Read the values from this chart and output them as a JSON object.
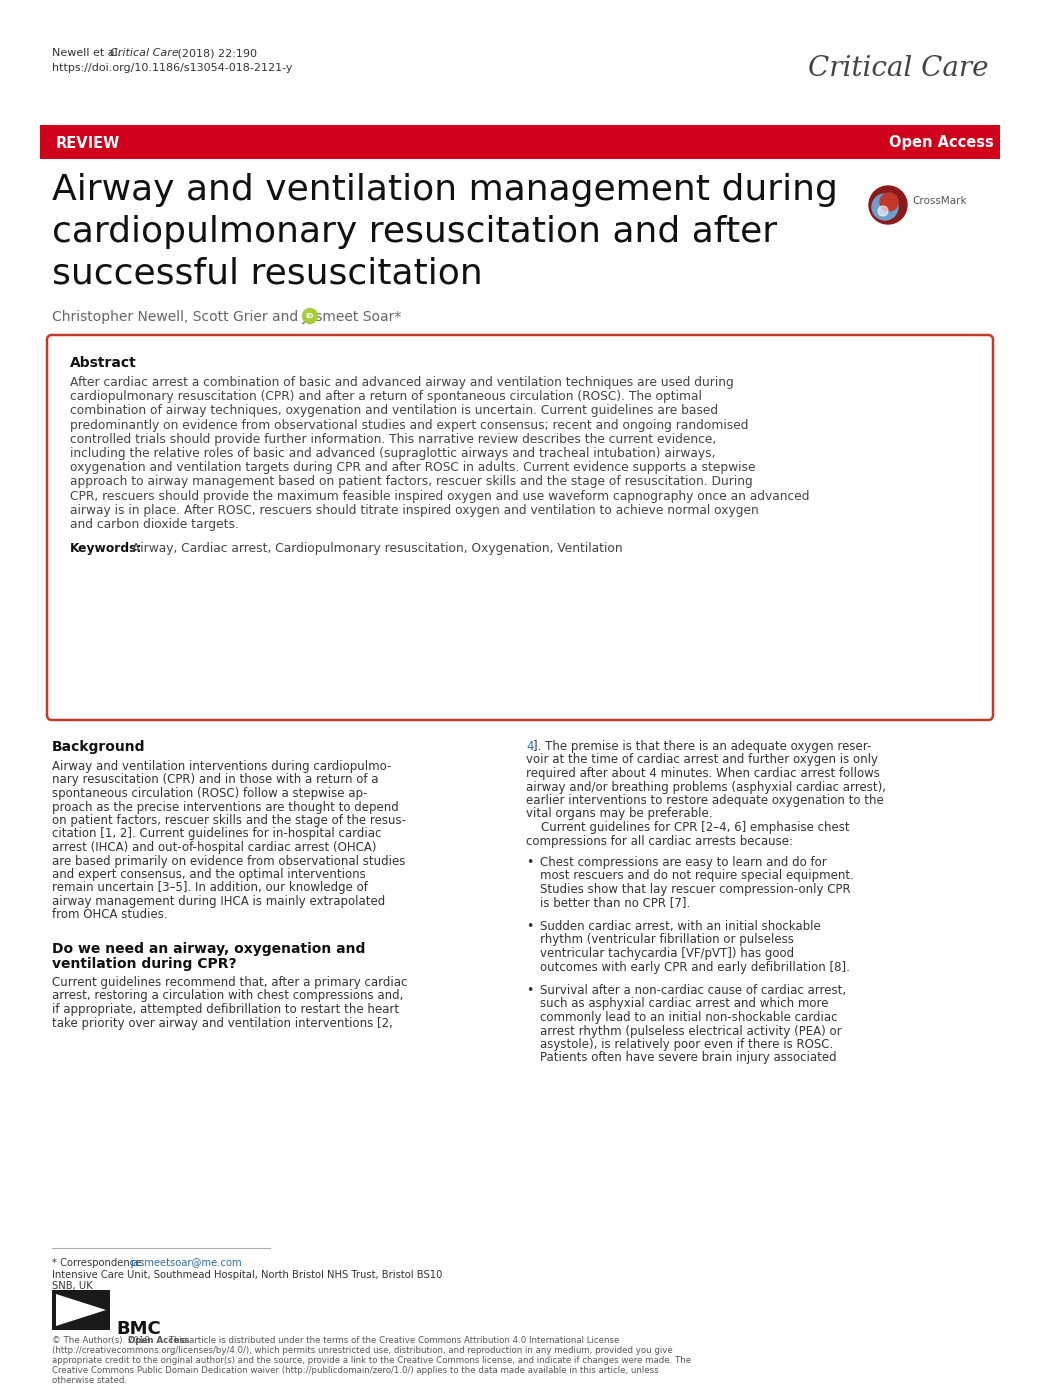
{
  "header_citation_part1": "Newell et al. ",
  "header_citation_italic": "Critical Care",
  "header_citation_part2": " (2018) 22:190",
  "header_doi": "https://doi.org/10.1186/s13054-018-2121-y",
  "journal_name": "Critical Care",
  "review_label": "REVIEW",
  "open_access_label": "Open Access",
  "banner_color": "#d0021b",
  "title_line1": "Airway and ventilation management during",
  "title_line2": "cardiopulmonary resuscitation and after",
  "title_line3": "successful resuscitation",
  "authors": "Christopher Newell, Scott Grier and Jasmeet Soar",
  "abstract_title": "Abstract",
  "abstract_text": "After cardiac arrest a combination of basic and advanced airway and ventilation techniques are used during cardiopulmonary resuscitation (CPR) and after a return of spontaneous circulation (ROSC). The optimal combination of airway techniques, oxygenation and ventilation is uncertain. Current guidelines are based predominantly on evidence from observational studies and expert consensus; recent and ongoing randomised controlled trials should provide further information. This narrative review describes the current evidence, including the relative roles of basic and advanced (supraglottic airways and tracheal intubation) airways, oxygenation and ventilation targets during CPR and after ROSC in adults. Current evidence supports a stepwise approach to airway management based on patient factors, rescuer skills and the stage of resuscitation. During CPR, rescuers should provide the maximum feasible inspired oxygen and use waveform capnography once an advanced airway is in place. After ROSC, rescuers should titrate inspired oxygen and ventilation to achieve normal oxygen and carbon dioxide targets.",
  "keywords_label": "Keywords:",
  "keywords_text": " Airway, Cardiac arrest, Cardiopulmonary resuscitation, Oxygenation, Ventilation",
  "abstract_border_color": "#c0392b",
  "bg_color": "#ffffff",
  "text_color": "#333333",
  "section1_title": "Background",
  "section1_col1_lines": [
    "Airway and ventilation interventions during cardiopulmo-",
    "nary resuscitation (CPR) and in those with a return of a",
    "spontaneous circulation (ROSC) follow a stepwise ap-",
    "proach as the precise interventions are thought to depend",
    "on patient factors, rescuer skills and the stage of the resus-",
    "citation [1, 2]. Current guidelines for in-hospital cardiac",
    "arrest (IHCA) and out-of-hospital cardiac arrest (OHCA)",
    "are based primarily on evidence from observational studies",
    "and expert consensus, and the optimal interventions",
    "remain uncertain [3–5]. In addition, our knowledge of",
    "airway management during IHCA is mainly extrapolated",
    "from OHCA studies."
  ],
  "section1_col2_lines": [
    "4]. The premise is that there is an adequate oxygen reser-",
    "voir at the time of cardiac arrest and further oxygen is only",
    "required after about 4 minutes. When cardiac arrest follows",
    "airway and/or breathing problems (asphyxial cardiac arrest),",
    "earlier interventions to restore adequate oxygenation to the",
    "vital organs may be preferable.",
    "    Current guidelines for CPR [2–4, 6] emphasise chest",
    "compressions for all cardiac arrests because:"
  ],
  "section2_title1": "Do we need an airway, oxygenation and",
  "section2_title2": "ventilation during CPR?",
  "section2_col1_lines": [
    "Current guidelines recommend that, after a primary cardiac",
    "arrest, restoring a circulation with chest compressions and,",
    "if appropriate, attempted defibrillation to restart the heart",
    "take priority over airway and ventilation interventions [2,"
  ],
  "bullet1_lines": [
    "Chest compressions are easy to learn and do for",
    "most rescuers and do not require special equipment.",
    "Studies show that lay rescuer compression-only CPR",
    "is better than no CPR [7]."
  ],
  "bullet2_lines": [
    "Sudden cardiac arrest, with an initial shockable",
    "rhythm (ventricular fibrillation or pulseless",
    "ventricular tachycardia [VF/pVT]) has good",
    "outcomes with early CPR and early defibrillation [8]."
  ],
  "bullet3_lines": [
    "Survival after a non-cardiac cause of cardiac arrest,",
    "such as asphyxial cardiac arrest and which more",
    "commonly lead to an initial non-shockable cardiac",
    "arrest rhythm (pulseless electrical activity (PEA) or",
    "asystole), is relatively poor even if there is ROSC.",
    "Patients often have severe brain injury associated"
  ],
  "footnote_corr": "* Correspondence: ",
  "footnote_email": "jasmeetsoar@me.com",
  "footnote_addr1": "Intensive Care Unit, Southmead Hospital, North Bristol NHS Trust, Bristol BS10",
  "footnote_addr2": "SNB, UK",
  "bmc_footer_bold": "Open Access",
  "bmc_footer_text": "© The Author(s). 2018 Open Access This article is distributed under the terms of the Creative Commons Attribution 4.0 International License (http://creativecommons.org/licenses/by/4.0/), which permits unrestricted use, distribution, and reproduction in any medium, provided you give appropriate credit to the original author(s) and the source, provide a link to the Creative Commons license, and indicate if changes were made. The Creative Commons Public Domain Dedication waiver (http://publicdomain/zero/1.0/) applies to the data made available in this article, unless otherwise stated.",
  "link_color": "#2e6da4"
}
